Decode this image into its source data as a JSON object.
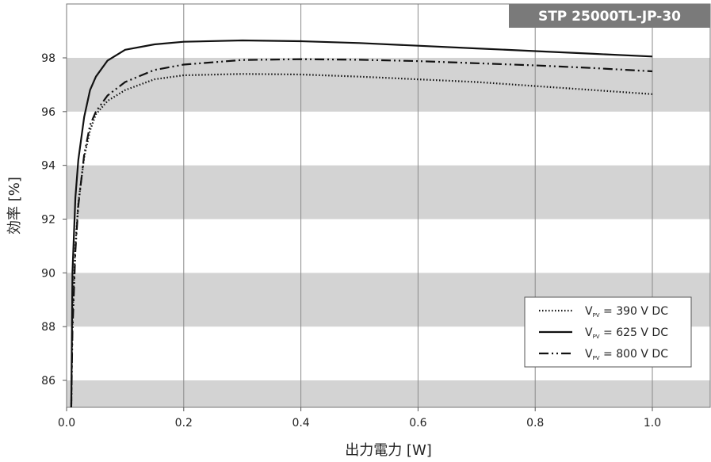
{
  "chart_data": {
    "type": "line",
    "badge": "STP 25000TL-JP-30",
    "xlabel": "出力電力 [W]",
    "ylabel": "効率 [%]",
    "xlim": [
      0.0,
      1.1
    ],
    "ylim": [
      85.0,
      99.9
    ],
    "xticks": [
      0.0,
      0.2,
      0.4,
      0.6,
      0.8,
      1.0
    ],
    "xtick_labels": [
      "0.0",
      "0.2",
      "0.4",
      "0.6",
      "0.8",
      "1.0"
    ],
    "yticks": [
      86,
      88,
      90,
      92,
      94,
      96,
      98
    ],
    "ytick_labels": [
      "86",
      "88",
      "90",
      "92",
      "94",
      "96",
      "98"
    ],
    "bands": [
      [
        85,
        86
      ],
      [
        88,
        90
      ],
      [
        92,
        94
      ],
      [
        96,
        98
      ]
    ],
    "grid": "vertical",
    "legend_position": "lower-right",
    "series": [
      {
        "name": "V_PV = 390 V DC",
        "legend_main": "V",
        "legend_sub": "PV",
        "legend_tail": " = 390 V DC",
        "style": "dotted",
        "x": [
          0.008,
          0.01,
          0.015,
          0.02,
          0.03,
          0.04,
          0.05,
          0.07,
          0.1,
          0.15,
          0.2,
          0.3,
          0.4,
          0.5,
          0.6,
          0.7,
          0.8,
          0.9,
          1.0
        ],
        "y": [
          85.0,
          88.3,
          91.0,
          92.6,
          94.3,
          95.3,
          95.9,
          96.4,
          96.8,
          97.2,
          97.35,
          97.4,
          97.38,
          97.3,
          97.2,
          97.1,
          96.95,
          96.8,
          96.65
        ]
      },
      {
        "name": "V_PV = 625 V DC",
        "legend_main": "V",
        "legend_sub": "PV",
        "legend_tail": " = 625 V DC",
        "style": "solid",
        "x": [
          0.008,
          0.01,
          0.015,
          0.02,
          0.03,
          0.04,
          0.05,
          0.07,
          0.1,
          0.15,
          0.2,
          0.3,
          0.4,
          0.5,
          0.6,
          0.7,
          0.8,
          0.9,
          1.0
        ],
        "y": [
          85.0,
          90.0,
          92.8,
          94.2,
          95.8,
          96.8,
          97.3,
          97.9,
          98.3,
          98.5,
          98.6,
          98.65,
          98.62,
          98.55,
          98.45,
          98.35,
          98.25,
          98.15,
          98.05
        ]
      },
      {
        "name": "V_PV = 800 V DC",
        "legend_main": "V",
        "legend_sub": "PV",
        "legend_tail": " = 800 V DC",
        "style": "dashdot",
        "x": [
          0.008,
          0.01,
          0.015,
          0.02,
          0.03,
          0.04,
          0.05,
          0.07,
          0.1,
          0.15,
          0.2,
          0.3,
          0.4,
          0.5,
          0.6,
          0.7,
          0.8,
          0.9,
          1.0
        ],
        "y": [
          85.0,
          87.8,
          90.8,
          92.5,
          94.4,
          95.5,
          96.0,
          96.6,
          97.1,
          97.55,
          97.75,
          97.92,
          97.95,
          97.93,
          97.88,
          97.8,
          97.72,
          97.62,
          97.5
        ]
      }
    ]
  }
}
